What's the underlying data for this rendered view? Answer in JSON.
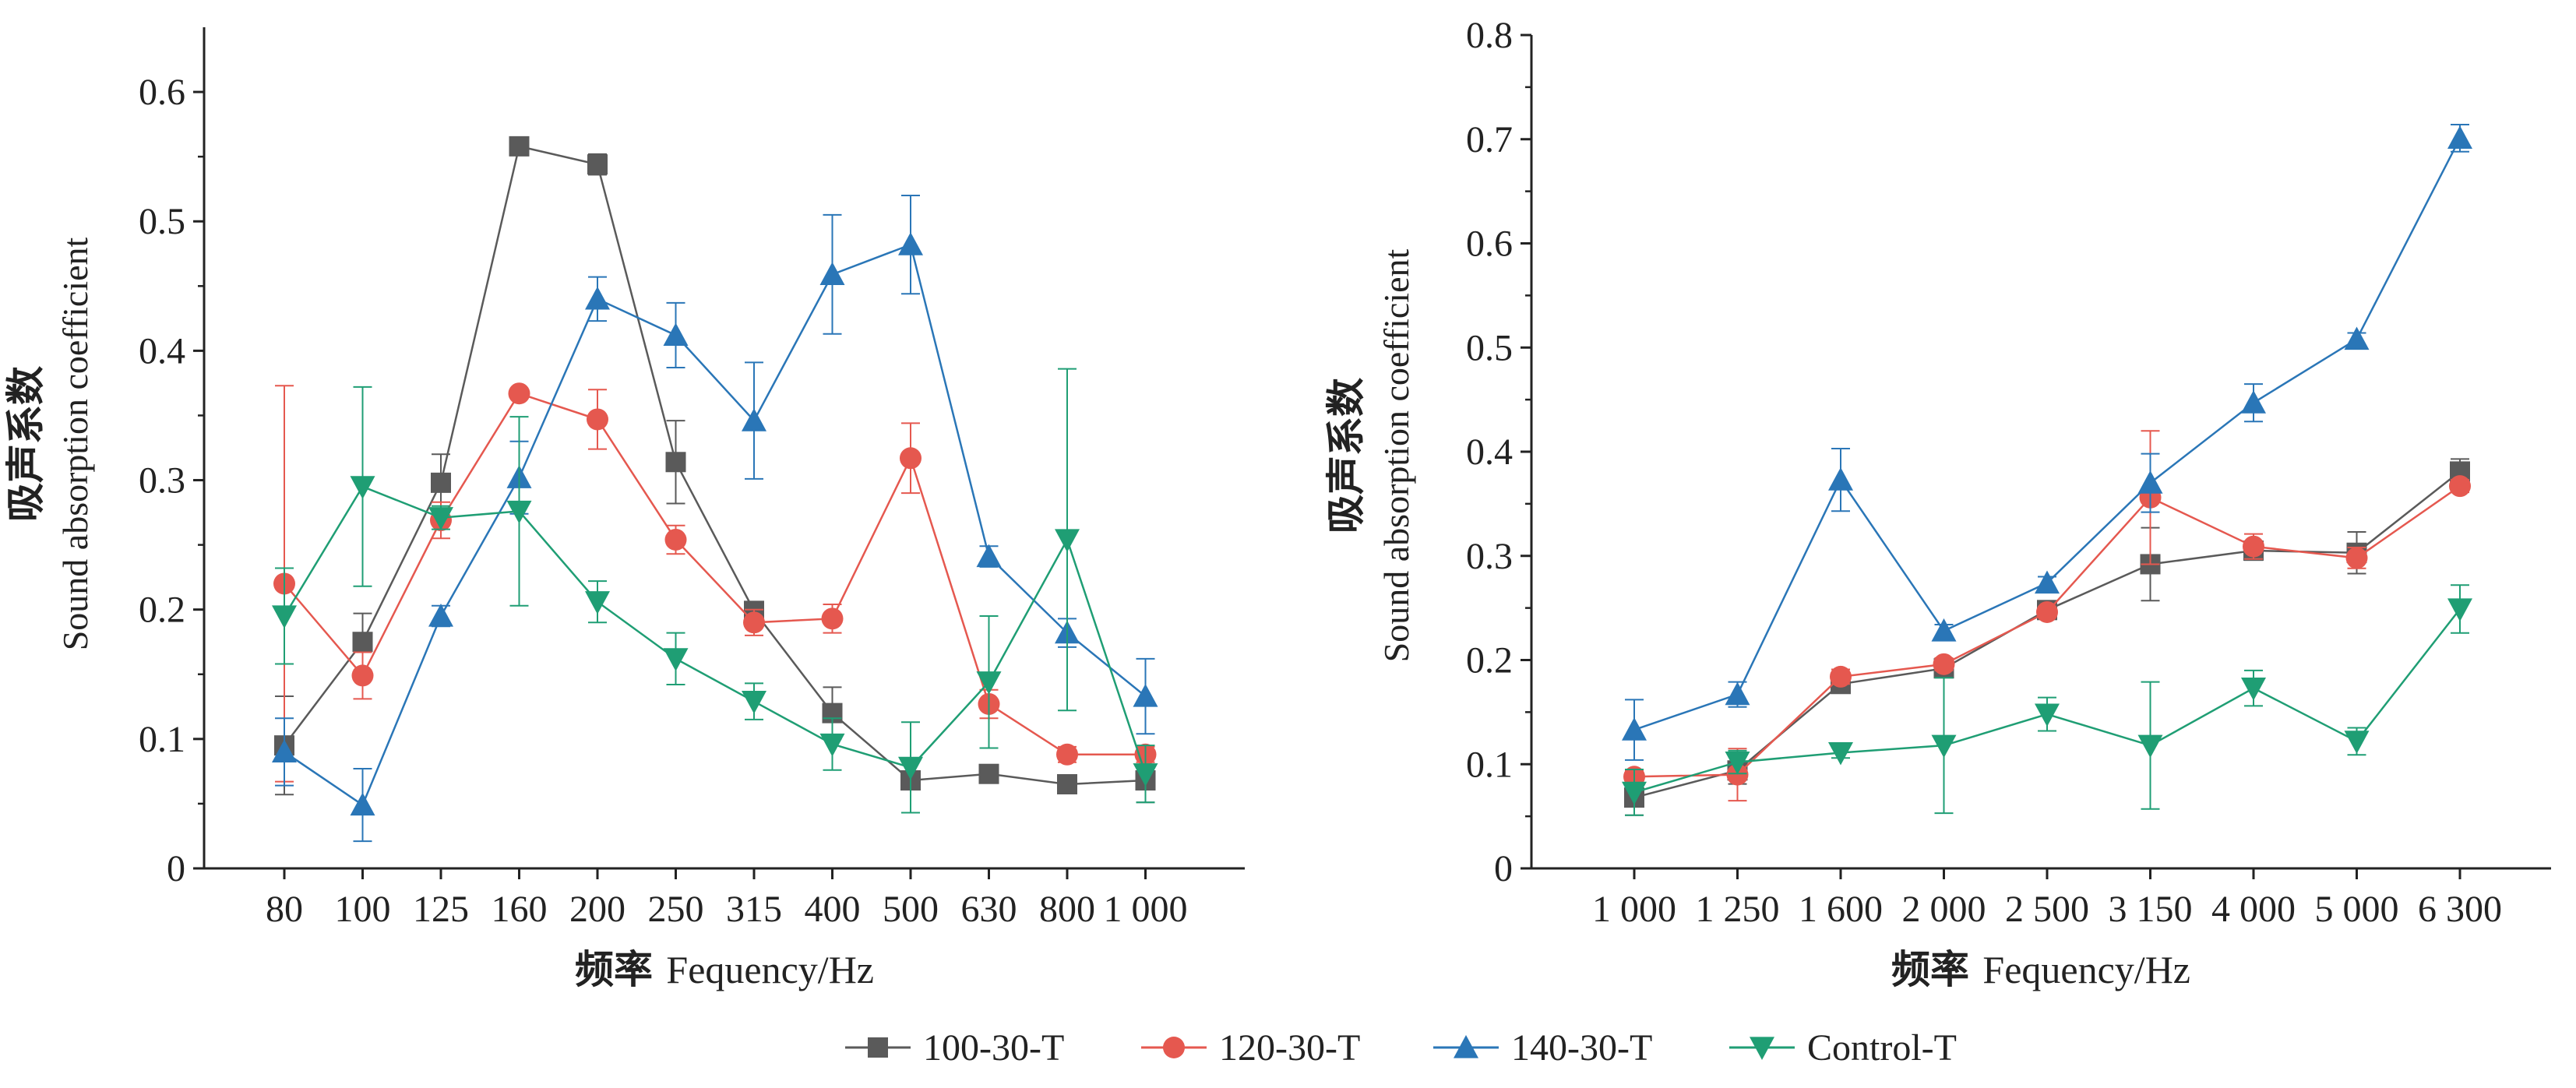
{
  "colors": {
    "100-30-T": "#5a5a5a",
    "120-30-T": "#e5584f",
    "140-30-T": "#2a76b7",
    "Control-T": "#1f9e74"
  },
  "legend": {
    "items": [
      {
        "label": "100-30-T",
        "marker": "square"
      },
      {
        "label": "120-30-T",
        "marker": "circle"
      },
      {
        "label": "140-30-T",
        "marker": "triangle-up"
      },
      {
        "label": "Control-T",
        "marker": "triangle-down"
      }
    ]
  },
  "chart_data": [
    {
      "type": "line",
      "panel": "left",
      "title": "",
      "xlabel_cn": "频率",
      "xlabel_en": "Fequency/Hz",
      "ylabel_cn": "吸声系数",
      "ylabel_en": "Sound absorption coefficient",
      "categories": [
        "80",
        "100",
        "125",
        "160",
        "200",
        "250",
        "315",
        "400",
        "500",
        "630",
        "800",
        "1 000"
      ],
      "ylim": [
        0,
        0.65
      ],
      "yticks": [
        0,
        0.1,
        0.2,
        0.3,
        0.4,
        0.5,
        0.6
      ],
      "ytick_labels": [
        "0",
        "0.1",
        "0.2",
        "0.3",
        "0.4",
        "0.5",
        "0.6"
      ],
      "grid": false,
      "series": [
        {
          "name": "100-30-T",
          "marker": "square",
          "values": [
            0.095,
            0.175,
            0.298,
            0.558,
            0.544,
            0.314,
            0.199,
            0.12,
            0.068,
            0.073,
            0.065,
            0.068
          ],
          "errors": [
            0.038,
            0.022,
            0.022,
            0.003,
            0.008,
            0.032,
            0.006,
            0.02,
            0.006,
            0.003,
            0.003,
            0.017
          ]
        },
        {
          "name": "120-30-T",
          "marker": "circle",
          "values": [
            0.22,
            0.149,
            0.269,
            0.367,
            0.347,
            0.254,
            0.19,
            0.193,
            0.317,
            0.127,
            0.088,
            0.088
          ],
          "errors": [
            0.153,
            0.018,
            0.014,
            0.003,
            0.023,
            0.011,
            0.01,
            0.011,
            0.027,
            0.011,
            0.006,
            0.006
          ]
        },
        {
          "name": "140-30-T",
          "marker": "triangle-up",
          "values": [
            0.09,
            0.049,
            0.195,
            0.302,
            0.44,
            0.412,
            0.346,
            0.459,
            0.482,
            0.241,
            0.182,
            0.133
          ],
          "errors": [
            0.026,
            0.028,
            0.008,
            0.028,
            0.017,
            0.025,
            0.045,
            0.046,
            0.038,
            0.008,
            0.011,
            0.029
          ]
        },
        {
          "name": "Control-T",
          "marker": "triangle-down",
          "values": [
            0.195,
            0.295,
            0.271,
            0.276,
            0.206,
            0.162,
            0.129,
            0.096,
            0.078,
            0.144,
            0.254,
            0.073
          ],
          "errors": [
            0.037,
            0.077,
            0.009,
            0.073,
            0.016,
            0.02,
            0.014,
            0.02,
            0.035,
            0.051,
            0.132,
            0.022
          ]
        }
      ]
    },
    {
      "type": "line",
      "panel": "right",
      "title": "",
      "xlabel_cn": "频率",
      "xlabel_en": "Fequency/Hz",
      "ylabel_cn": "吸声系数",
      "ylabel_en": "Sound absorption coefficient",
      "categories": [
        "1 000",
        "1 250",
        "1 600",
        "2 000",
        "2 500",
        "3 150",
        "4 000",
        "5 000",
        "6 300"
      ],
      "ylim": [
        0,
        0.8
      ],
      "yticks": [
        0,
        0.1,
        0.2,
        0.3,
        0.4,
        0.5,
        0.6,
        0.7,
        0.8
      ],
      "ytick_labels": [
        "0",
        "0.1",
        "0.2",
        "0.3",
        "0.4",
        "0.5",
        "0.6",
        "0.7",
        "0.8"
      ],
      "grid": false,
      "series": [
        {
          "name": "100-30-T",
          "marker": "square",
          "values": [
            0.068,
            0.094,
            0.177,
            0.192,
            0.248,
            0.292,
            0.305,
            0.303,
            0.381
          ],
          "errors": [
            0.017,
            0.013,
            0.005,
            0.005,
            0.004,
            0.035,
            0.009,
            0.02,
            0.012
          ]
        },
        {
          "name": "120-30-T",
          "marker": "circle",
          "values": [
            0.088,
            0.09,
            0.184,
            0.196,
            0.246,
            0.356,
            0.309,
            0.298,
            0.367
          ],
          "errors": [
            0.006,
            0.025,
            0.007,
            0.006,
            0.005,
            0.064,
            0.012,
            0.01,
            0.006
          ]
        },
        {
          "name": "140-30-T",
          "marker": "triangle-up",
          "values": [
            0.133,
            0.167,
            0.373,
            0.228,
            0.274,
            0.37,
            0.447,
            0.508,
            0.701
          ],
          "errors": [
            0.029,
            0.012,
            0.03,
            0.006,
            0.006,
            0.028,
            0.018,
            0.006,
            0.013
          ]
        },
        {
          "name": "Control-T",
          "marker": "triangle-down",
          "values": [
            0.073,
            0.102,
            0.111,
            0.118,
            0.148,
            0.118,
            0.173,
            0.122,
            0.249
          ],
          "errors": [
            0.022,
            0.011,
            0.005,
            0.065,
            0.016,
            0.061,
            0.017,
            0.013,
            0.023
          ]
        }
      ]
    }
  ]
}
